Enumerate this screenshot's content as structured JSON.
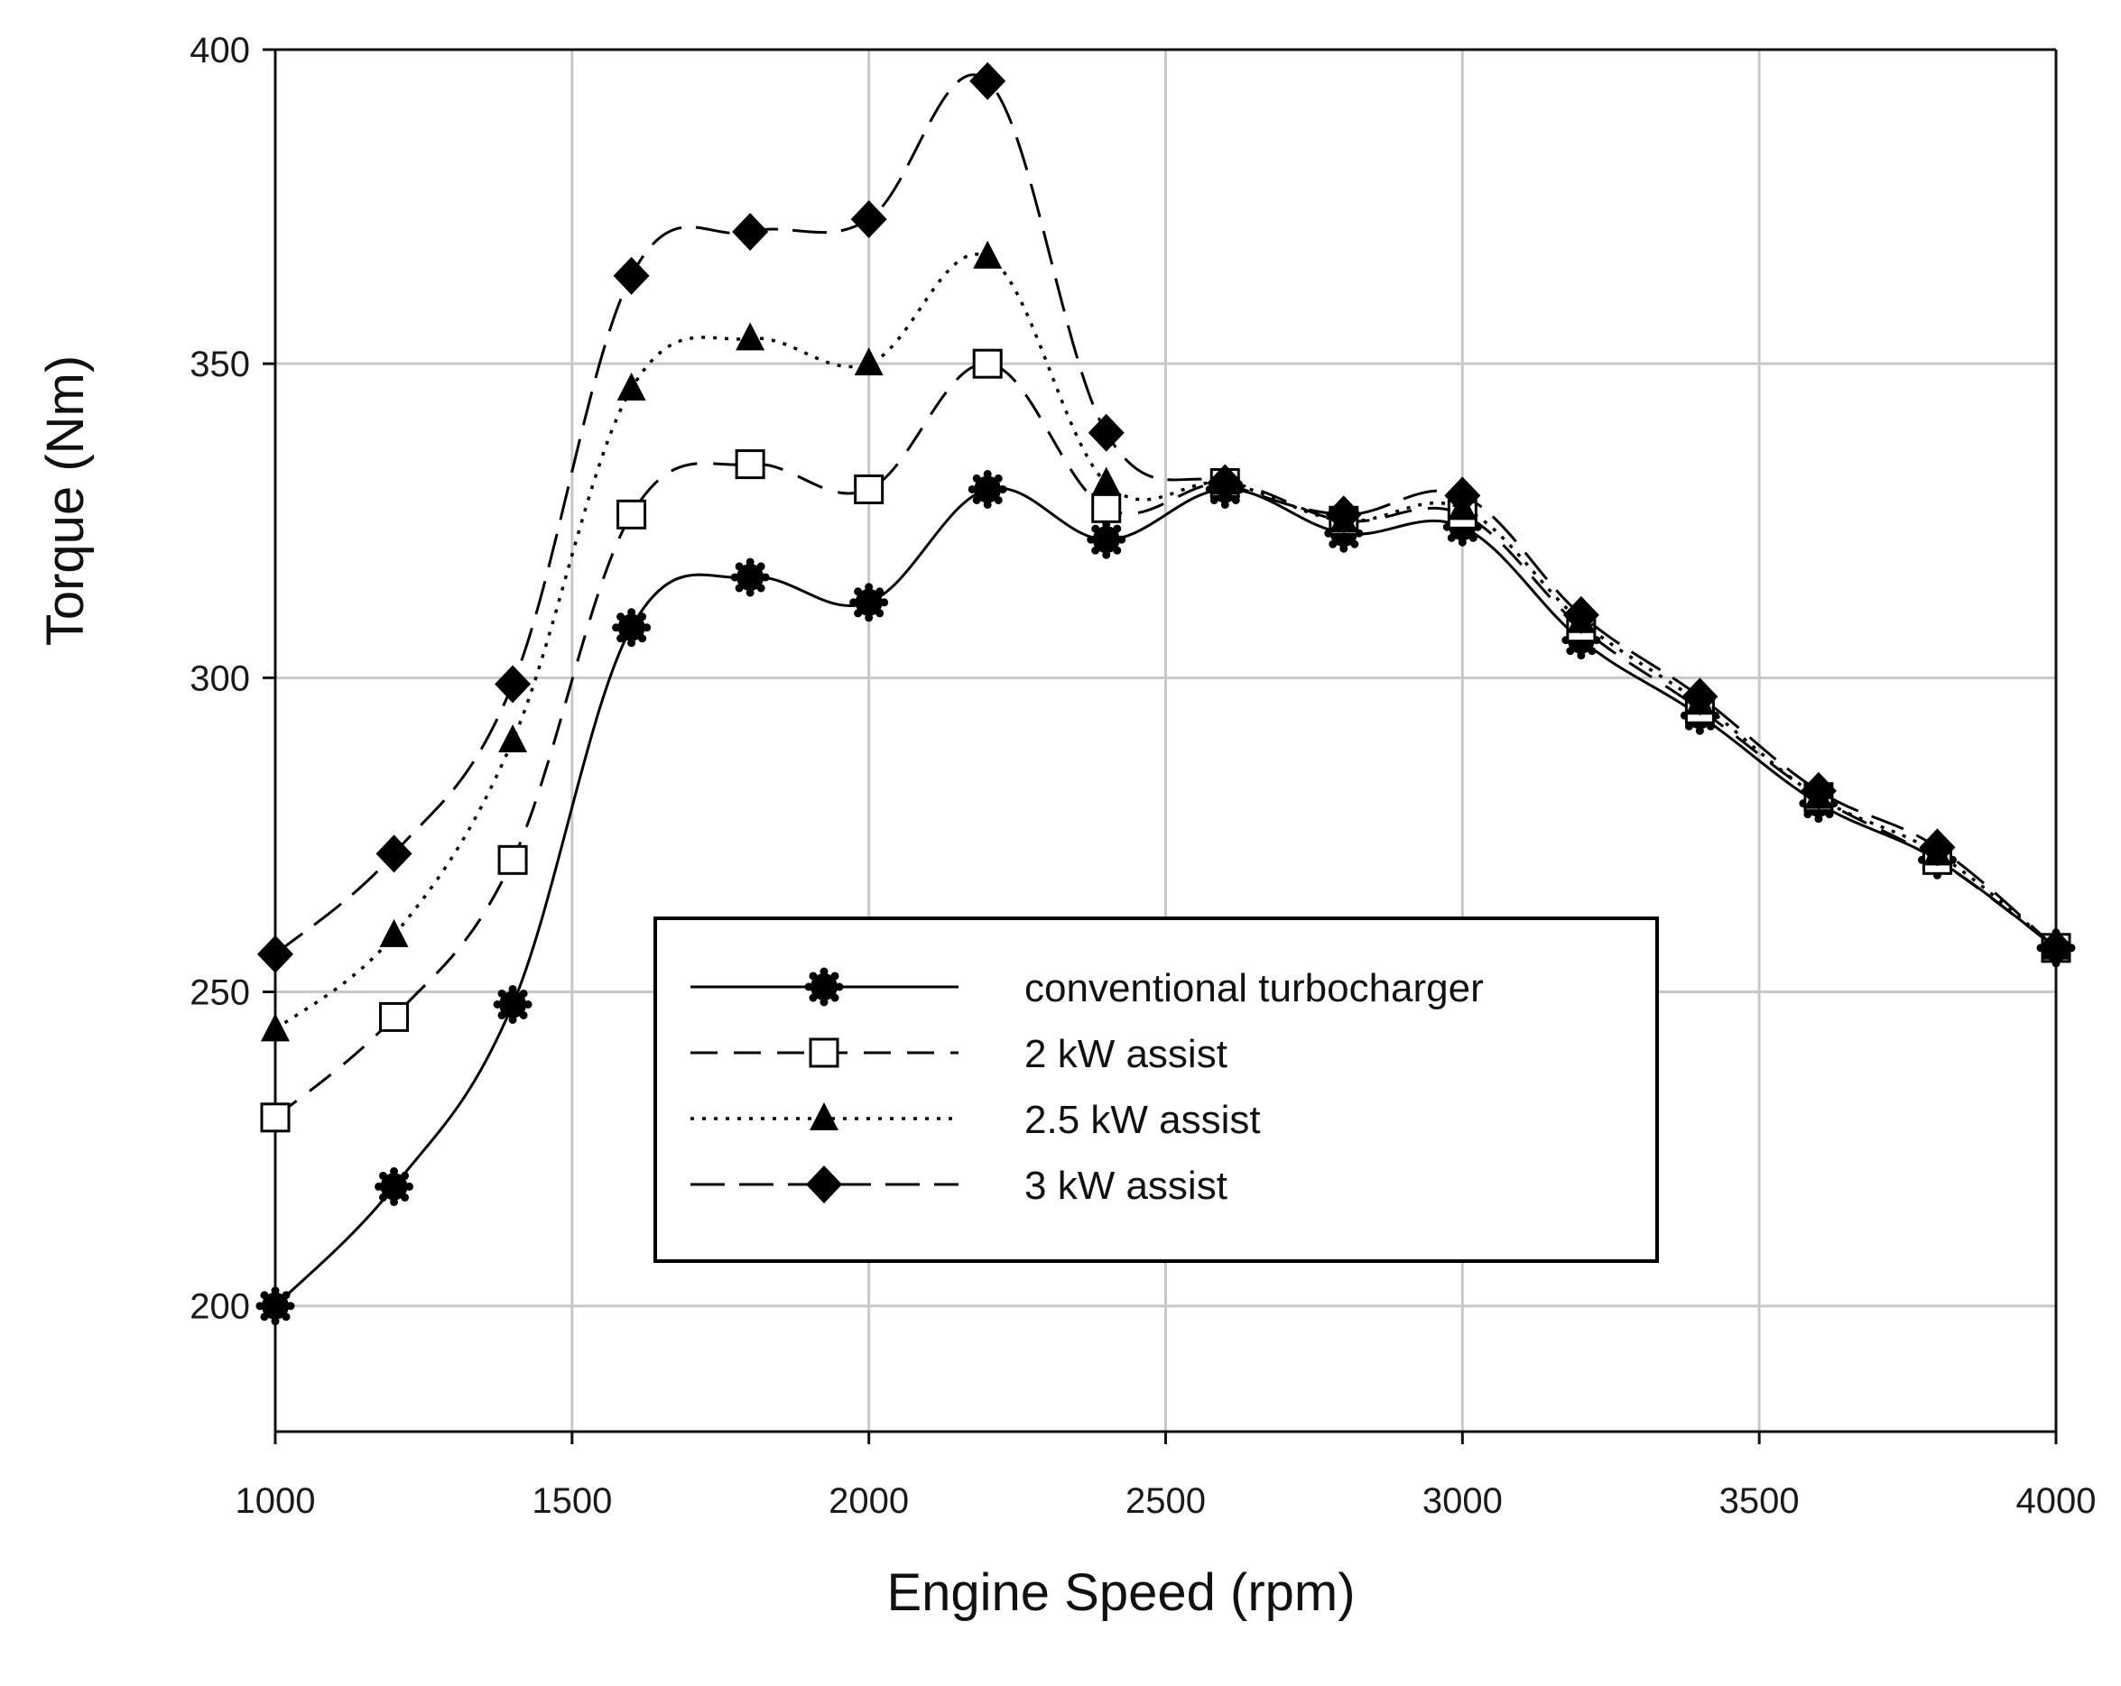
{
  "chart_data": {
    "type": "line",
    "title": "",
    "xlabel": "Engine Speed (rpm)",
    "ylabel": "Torque (Nm)",
    "xlim": [
      1000,
      4000
    ],
    "ylim": [
      180,
      400
    ],
    "x_ticks": [
      1000,
      1500,
      2000,
      2500,
      3000,
      3500,
      4000
    ],
    "y_ticks": [
      200,
      250,
      300,
      350,
      400
    ],
    "grid": true,
    "legend_position": "center",
    "x": [
      1000,
      1200,
      1400,
      1600,
      1800,
      2000,
      2200,
      2400,
      2600,
      2800,
      3000,
      3200,
      3400,
      3600,
      3800,
      4000
    ],
    "series": [
      {
        "name": "conventional turbocharger",
        "line_style": "solid",
        "marker": "star",
        "values": [
          200,
          219,
          248,
          308,
          316,
          312,
          330,
          322,
          330,
          323,
          324,
          306,
          294,
          280,
          271,
          257
        ]
      },
      {
        "name": "2 kW assist",
        "line_style": "long-dash",
        "marker": "open-square",
        "values": [
          230,
          246,
          271,
          326,
          334,
          330,
          350,
          327,
          331,
          325,
          326,
          308,
          295,
          281,
          271,
          257
        ]
      },
      {
        "name": "2.5 kW assist",
        "line_style": "dotted",
        "marker": "filled-triangle",
        "values": [
          244,
          259,
          290,
          346,
          354,
          350,
          367,
          331,
          331,
          325,
          327,
          309,
          296,
          281,
          272,
          257
        ]
      },
      {
        "name": "3 kW assist",
        "line_style": "dash",
        "marker": "filled-diamond",
        "values": [
          256,
          272,
          299,
          364,
          371,
          373,
          395,
          339,
          331,
          326,
          329,
          310,
          297,
          282,
          273,
          257
        ]
      }
    ]
  }
}
